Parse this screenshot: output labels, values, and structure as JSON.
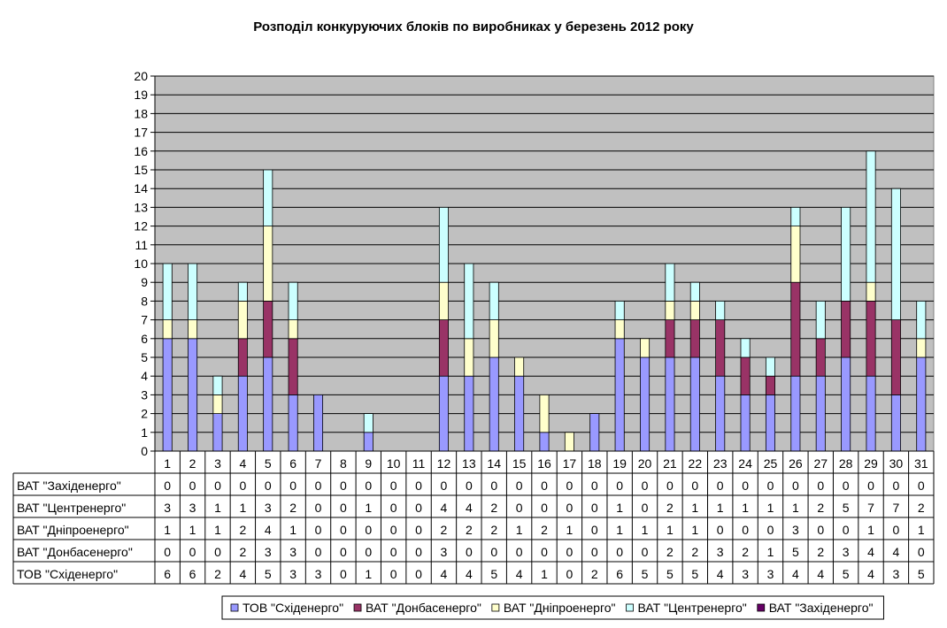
{
  "chart_data": {
    "type": "bar",
    "stacked": true,
    "title": "Розподіл конкуруючих блоків по виробниках у березень 2012 року",
    "xlabel": "",
    "ylabel": "",
    "ylim": [
      0,
      20
    ],
    "yticks": [
      0,
      1,
      2,
      3,
      4,
      5,
      6,
      7,
      8,
      9,
      10,
      11,
      12,
      13,
      14,
      15,
      16,
      17,
      18,
      19,
      20
    ],
    "grid": true,
    "legend_position": "bottom",
    "categories": [
      "1",
      "2",
      "3",
      "4",
      "5",
      "6",
      "7",
      "8",
      "9",
      "10",
      "11",
      "12",
      "13",
      "14",
      "15",
      "16",
      "17",
      "18",
      "19",
      "20",
      "21",
      "22",
      "23",
      "24",
      "25",
      "26",
      "27",
      "28",
      "29",
      "30",
      "31"
    ],
    "series": [
      {
        "name": "ТОВ \"Східенерго\"",
        "color": "#9999ff",
        "values": [
          6,
          6,
          2,
          4,
          5,
          3,
          3,
          0,
          1,
          0,
          0,
          4,
          4,
          5,
          4,
          1,
          0,
          2,
          6,
          5,
          5,
          5,
          4,
          3,
          3,
          4,
          4,
          5,
          4,
          3,
          5
        ]
      },
      {
        "name": "ВАТ \"Донбасенерго\"",
        "color": "#993366",
        "values": [
          0,
          0,
          0,
          2,
          3,
          3,
          0,
          0,
          0,
          0,
          0,
          3,
          0,
          0,
          0,
          0,
          0,
          0,
          0,
          0,
          2,
          2,
          3,
          2,
          1,
          5,
          2,
          3,
          4,
          4,
          0
        ]
      },
      {
        "name": "ВАТ \"Дніпроенерго\"",
        "color": "#ffffcc",
        "values": [
          1,
          1,
          1,
          2,
          4,
          1,
          0,
          0,
          0,
          0,
          0,
          2,
          2,
          2,
          1,
          2,
          1,
          0,
          1,
          1,
          1,
          1,
          0,
          0,
          0,
          3,
          0,
          0,
          1,
          0,
          1
        ]
      },
      {
        "name": "ВАТ \"Центренерго\"",
        "color": "#ccffff",
        "values": [
          3,
          3,
          1,
          1,
          3,
          2,
          0,
          0,
          1,
          0,
          0,
          4,
          4,
          2,
          0,
          0,
          0,
          0,
          1,
          0,
          2,
          1,
          1,
          1,
          1,
          1,
          2,
          5,
          7,
          7,
          2
        ]
      },
      {
        "name": "ВАТ \"Західенерго\"",
        "color": "#660066",
        "values": [
          0,
          0,
          0,
          0,
          0,
          0,
          0,
          0,
          0,
          0,
          0,
          0,
          0,
          0,
          0,
          0,
          0,
          0,
          0,
          0,
          0,
          0,
          0,
          0,
          0,
          0,
          0,
          0,
          0,
          0,
          0
        ]
      }
    ],
    "table_row_order": [
      "ВАТ \"Західенерго\"",
      "ВАТ \"Центренерго\"",
      "ВАТ \"Дніпроенерго\"",
      "ВАТ \"Донбасенерго\"",
      "ТОВ \"Східенерго\""
    ],
    "colors": {
      "plot_background": "#c0c0c0",
      "gridline": "#000000",
      "bar_outline": "#000000"
    }
  }
}
